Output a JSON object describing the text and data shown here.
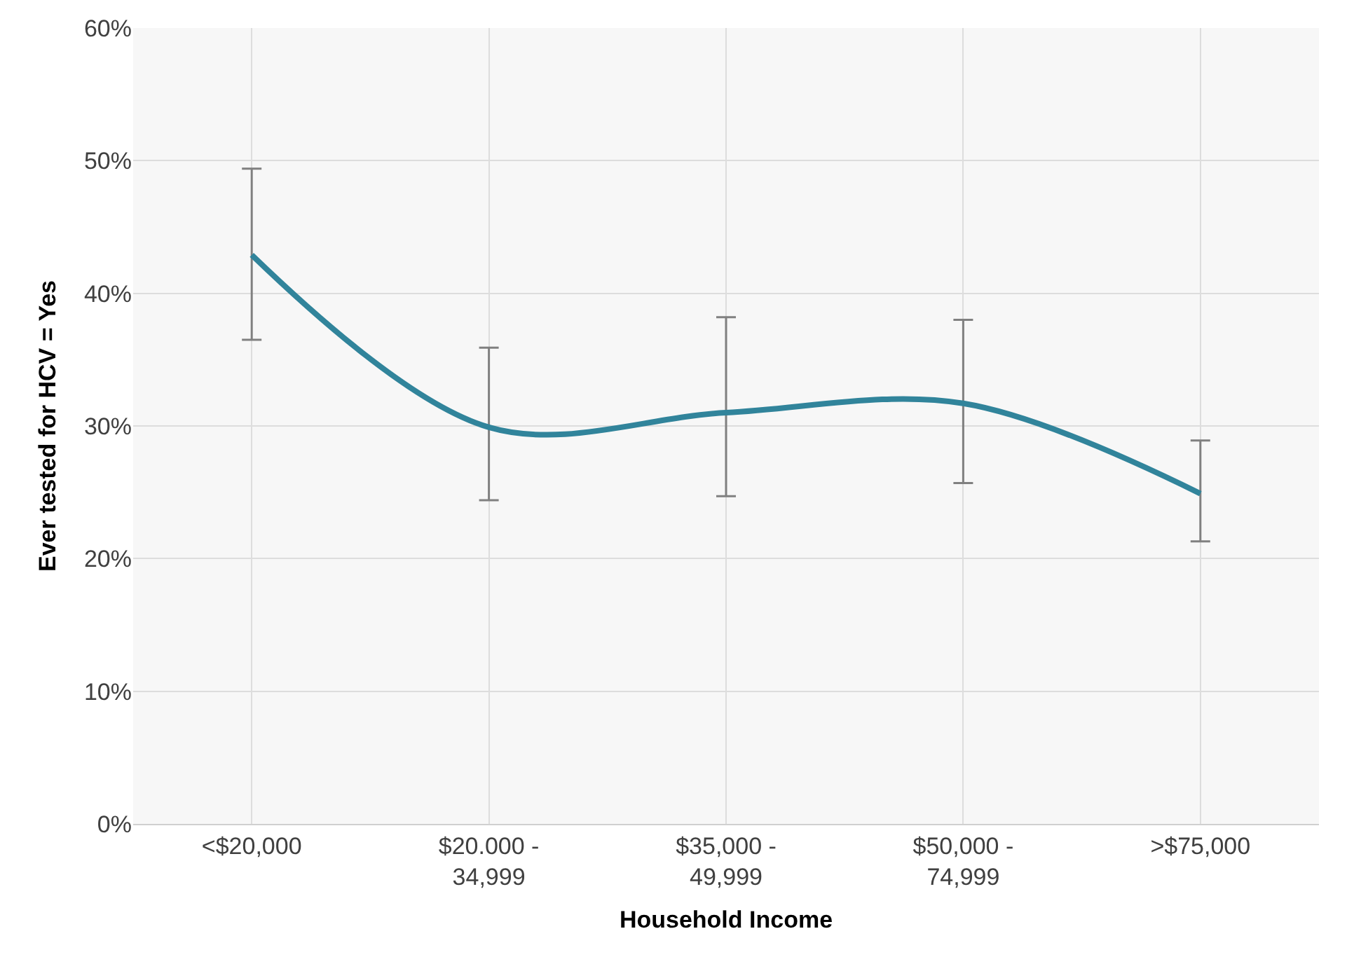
{
  "chart_data": {
    "type": "line",
    "xlabel": "Household Income",
    "ylabel": "Ever tested for HCV = Yes",
    "categories": [
      "<$20,000",
      "$20.000 -\n34,999",
      "$35,000 -\n49,999",
      "$50,000 -\n74,999",
      ">$75,000"
    ],
    "series": [
      {
        "color": "#31849b",
        "values": [
          42.9,
          29.9,
          31.0,
          31.7,
          24.9
        ],
        "errors": [
          [
            36.5,
            49.4
          ],
          [
            24.4,
            35.9
          ],
          [
            24.7,
            38.2
          ],
          [
            25.7,
            38.0
          ],
          [
            21.3,
            28.9
          ]
        ]
      }
    ],
    "ylim": [
      0,
      60
    ],
    "yticks": [
      {
        "value": 0,
        "label": "0%"
      },
      {
        "value": 10,
        "label": "10%"
      },
      {
        "value": 20,
        "label": "20%"
      },
      {
        "value": 30,
        "label": "30%"
      },
      {
        "value": 40,
        "label": "40%"
      },
      {
        "value": 50,
        "label": "50%"
      },
      {
        "value": 60,
        "label": "60%"
      }
    ],
    "grid": true,
    "marker": "none",
    "line_style": "solid"
  }
}
